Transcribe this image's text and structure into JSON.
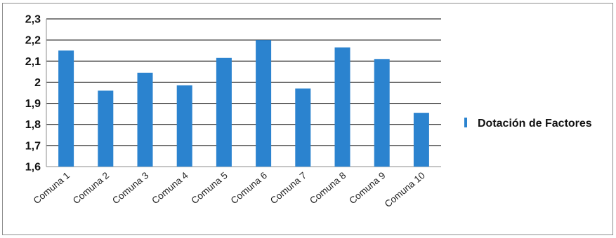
{
  "chart_data": {
    "type": "bar",
    "categories": [
      "Comuna 1",
      "Comuna 2",
      "Comuna 3",
      "Comuna 4",
      "Comuna 5",
      "Comuna 6",
      "Comuna 7",
      "Comuna 8",
      "Comuna 9",
      "Comuna 10"
    ],
    "series": [
      {
        "name": "Dotación de Factores",
        "values": [
          2.15,
          1.96,
          2.045,
          1.985,
          2.115,
          2.2,
          1.97,
          2.165,
          2.11,
          1.855
        ]
      }
    ],
    "ylim": [
      1.6,
      2.3
    ],
    "yticks": [
      "1,6",
      "1,7",
      "1,8",
      "1,9",
      "2",
      "2,1",
      "2,2",
      "2,3"
    ],
    "grid": true,
    "legend_position": "right",
    "colors": {
      "bar": "#2b83cf",
      "grid": "#000000",
      "axis": "#8c8c8c"
    }
  }
}
